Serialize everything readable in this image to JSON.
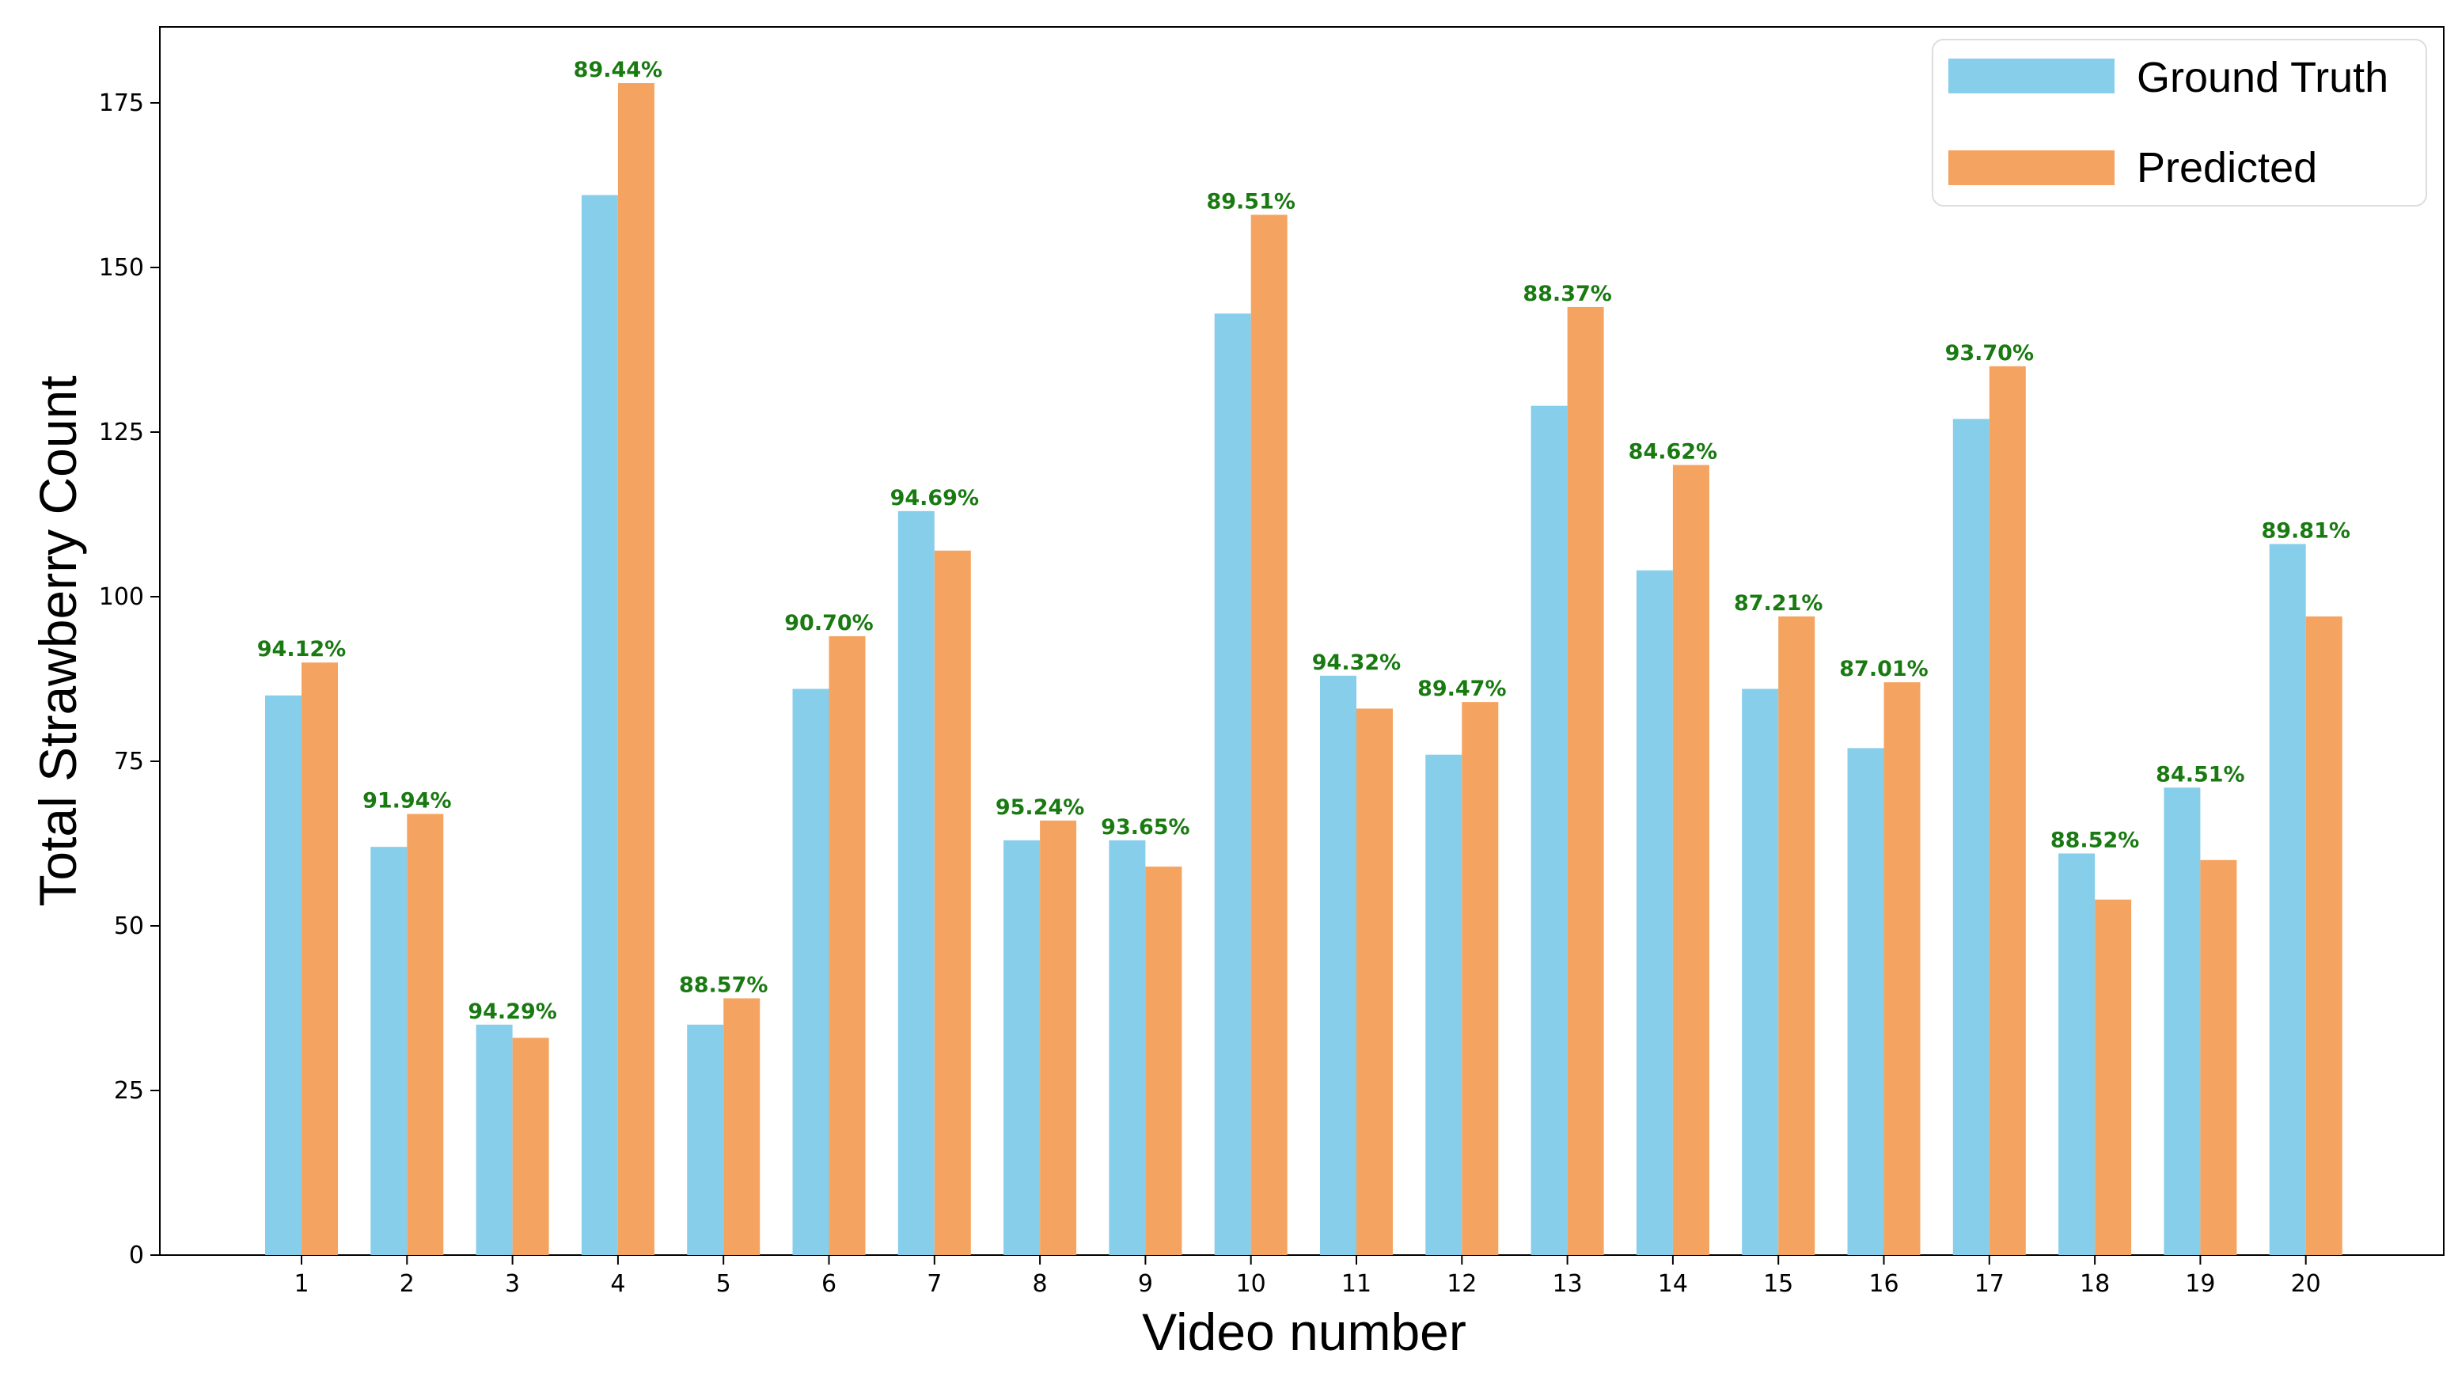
{
  "chart_data": {
    "type": "bar",
    "xlabel": "Video number",
    "ylabel": "Total Strawberry Count",
    "ylim": [
      0,
      187
    ],
    "yticks": [
      0,
      25,
      50,
      75,
      100,
      125,
      150,
      175
    ],
    "categories": [
      "1",
      "2",
      "3",
      "4",
      "5",
      "6",
      "7",
      "8",
      "9",
      "10",
      "11",
      "12",
      "13",
      "14",
      "15",
      "16",
      "17",
      "18",
      "19",
      "20"
    ],
    "series": [
      {
        "name": "Ground Truth",
        "color": "#87ceeb",
        "values": [
          85,
          62,
          35,
          161,
          35,
          86,
          113,
          63,
          63,
          143,
          88,
          76,
          129,
          104,
          86,
          77,
          127,
          61,
          71,
          108
        ]
      },
      {
        "name": "Predicted",
        "color": "#f4a460",
        "values": [
          90,
          67,
          33,
          178,
          39,
          94,
          107,
          66,
          59,
          158,
          83,
          84,
          144,
          120,
          97,
          87,
          135,
          54,
          60,
          97
        ]
      }
    ],
    "annotations": [
      "94.12%",
      "91.94%",
      "94.29%",
      "89.44%",
      "88.57%",
      "90.70%",
      "94.69%",
      "95.24%",
      "93.65%",
      "89.51%",
      "94.32%",
      "89.47%",
      "88.37%",
      "84.62%",
      "87.21%",
      "87.01%",
      "93.70%",
      "88.52%",
      "84.51%",
      "89.81%"
    ],
    "annotation_color": "#1a7a12",
    "grid": false,
    "legend_position": "top-right"
  }
}
